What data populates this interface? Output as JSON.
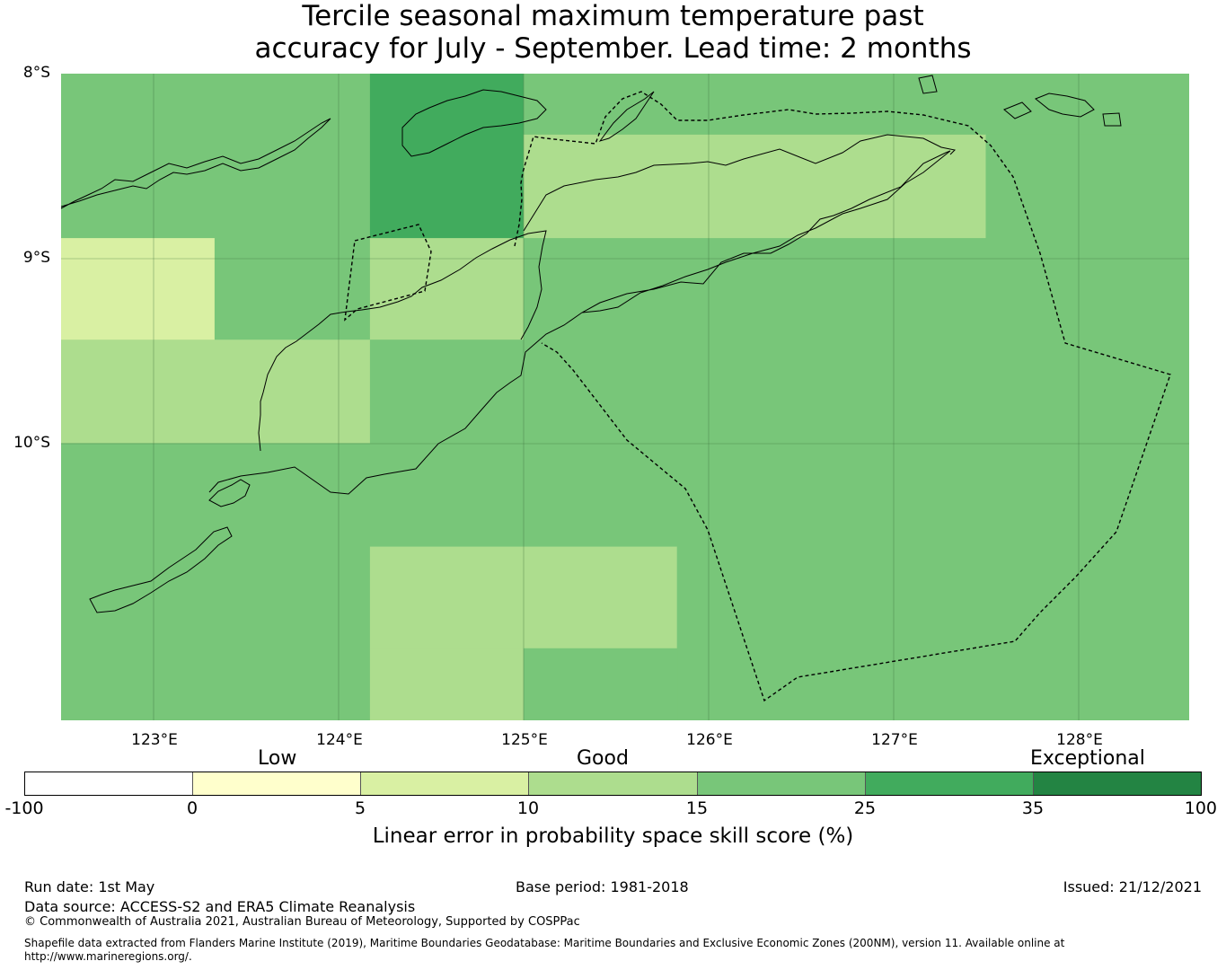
{
  "title": {
    "line1": "Tercile seasonal maximum temperature past",
    "line2": "accuracy for July - September. Lead time: 2 months"
  },
  "map": {
    "lat_labels": [
      "8°S",
      "9°S",
      "10°S"
    ],
    "lon_labels": [
      "123°E",
      "124°E",
      "125°E",
      "126°E",
      "127°E",
      "128°E"
    ],
    "lon_range": [
      122.5,
      128.6
    ],
    "lat_range": [
      -8.0,
      -11.5
    ],
    "grid_cells": [
      {
        "lon": [
          122.5,
          124.17
        ],
        "lat": [
          -8.0,
          -8.89
        ],
        "value": "15-25"
      },
      {
        "lon": [
          124.17,
          125.0
        ],
        "lat": [
          -8.0,
          -8.89
        ],
        "value": "25-35"
      },
      {
        "lon": [
          125.0,
          128.6
        ],
        "lat": [
          -8.0,
          -8.33
        ],
        "value": "15-25"
      },
      {
        "lon": [
          125.0,
          127.5
        ],
        "lat": [
          -8.33,
          -8.89
        ],
        "value": "10-15"
      },
      {
        "lon": [
          127.5,
          128.6
        ],
        "lat": [
          -8.33,
          -8.89
        ],
        "value": "15-25"
      },
      {
        "lon": [
          122.5,
          123.33
        ],
        "lat": [
          -8.89,
          -9.44
        ],
        "value": "5-10"
      },
      {
        "lon": [
          123.33,
          124.17
        ],
        "lat": [
          -8.89,
          -9.44
        ],
        "value": "15-25"
      },
      {
        "lon": [
          124.17,
          125.0
        ],
        "lat": [
          -8.89,
          -9.44
        ],
        "value": "10-15"
      },
      {
        "lon": [
          125.0,
          128.6
        ],
        "lat": [
          -8.89,
          -10.0
        ],
        "value": "15-25"
      },
      {
        "lon": [
          122.5,
          124.17
        ],
        "lat": [
          -9.44,
          -10.0
        ],
        "value": "10-15"
      },
      {
        "lon": [
          124.17,
          125.0
        ],
        "lat": [
          -9.44,
          -10.0
        ],
        "value": "15-25"
      },
      {
        "lon": [
          122.5,
          128.6
        ],
        "lat": [
          -10.0,
          -10.56
        ],
        "value": "15-25"
      },
      {
        "lon": [
          122.5,
          124.17
        ],
        "lat": [
          -10.56,
          -11.5
        ],
        "value": "15-25"
      },
      {
        "lon": [
          124.17,
          125.83
        ],
        "lat": [
          -10.56,
          -11.11
        ],
        "value": "10-15"
      },
      {
        "lon": [
          125.83,
          128.6
        ],
        "lat": [
          -10.56,
          -11.5
        ],
        "value": "15-25"
      },
      {
        "lon": [
          124.17,
          125.0
        ],
        "lat": [
          -11.11,
          -11.5
        ],
        "value": "10-15"
      },
      {
        "lon": [
          125.0,
          125.83
        ],
        "lat": [
          -11.11,
          -11.5
        ],
        "value": "15-25"
      }
    ]
  },
  "colorbar": {
    "category_labels": [
      "Low",
      "Good",
      "Exceptional"
    ],
    "ticks": [
      "-100",
      "0",
      "5",
      "10",
      "15",
      "25",
      "35",
      "100"
    ],
    "colors": [
      "#ffffff",
      "#ffffcc",
      "#d9f0a3",
      "#addd8e",
      "#78c679",
      "#41ab5d",
      "#238443"
    ],
    "bins": [
      "-100-0",
      "0-5",
      "5-10",
      "10-15",
      "15-25",
      "25-35",
      "35-100"
    ],
    "title": "Linear error in probability space skill score (%)"
  },
  "footer": {
    "run_date": "Run date: 1st May",
    "base_period": "Base period: 1981-2018",
    "issued": "Issued: 21/12/2021",
    "data_source": "Data source: ACCESS-S2 and ERA5 Climate Reanalysis",
    "copyright": "© Commonwealth of Australia 2021, Australian Bureau of Meteorology, Supported by COSPPac",
    "shapefile_line1": "Shapefile data extracted from Flanders Marine Institute (2019), Maritime Boundaries Geodatabase: Maritime Boundaries and Exclusive Economic Zones (200NM), version 11. Available online at",
    "shapefile_line2": "http://www.marineregions.org/."
  }
}
